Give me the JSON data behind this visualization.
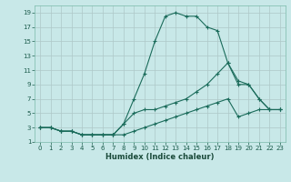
{
  "xlabel": "Humidex (Indice chaleur)",
  "background_color": "#c8e8e8",
  "grid_color": "#aec8c8",
  "line_color": "#1a6b5a",
  "line1_x": [
    0,
    1,
    2,
    3,
    4,
    5,
    6,
    7,
    8,
    9,
    10,
    11,
    12,
    13,
    14,
    15,
    16,
    17,
    18,
    19,
    20,
    21,
    22,
    23
  ],
  "line1_y": [
    3,
    3,
    2.5,
    2.5,
    2,
    2,
    2,
    2,
    3.5,
    7,
    10.5,
    15,
    18.5,
    19,
    18.5,
    18.5,
    17,
    16.5,
    12,
    9.5,
    9,
    7,
    5.5,
    5.5
  ],
  "line2_x": [
    0,
    1,
    2,
    3,
    4,
    5,
    6,
    7,
    8,
    9,
    10,
    11,
    12,
    13,
    14,
    15,
    16,
    17,
    18,
    19,
    20,
    21,
    22,
    23
  ],
  "line2_y": [
    3,
    3,
    2.5,
    2.5,
    2,
    2,
    2,
    2,
    3.5,
    5,
    5.5,
    5.5,
    6,
    6.5,
    7,
    8,
    9,
    10.5,
    12,
    9,
    9,
    7,
    5.5,
    5.5
  ],
  "line3_x": [
    0,
    1,
    2,
    3,
    4,
    5,
    6,
    7,
    8,
    9,
    10,
    11,
    12,
    13,
    14,
    15,
    16,
    17,
    18,
    19,
    20,
    21,
    22,
    23
  ],
  "line3_y": [
    3,
    3,
    2.5,
    2.5,
    2,
    2,
    2,
    2,
    2,
    2.5,
    3,
    3.5,
    4,
    4.5,
    5,
    5.5,
    6,
    6.5,
    7,
    4.5,
    5,
    5.5,
    5.5,
    5.5
  ],
  "xlim": [
    -0.5,
    23.5
  ],
  "ylim": [
    1,
    20
  ],
  "xticks": [
    0,
    1,
    2,
    3,
    4,
    5,
    6,
    7,
    8,
    9,
    10,
    11,
    12,
    13,
    14,
    15,
    16,
    17,
    18,
    19,
    20,
    21,
    22,
    23
  ],
  "yticks": [
    1,
    3,
    5,
    7,
    9,
    11,
    13,
    15,
    17,
    19
  ],
  "xlabel_fontsize": 6.0,
  "tick_fontsize": 5.0
}
